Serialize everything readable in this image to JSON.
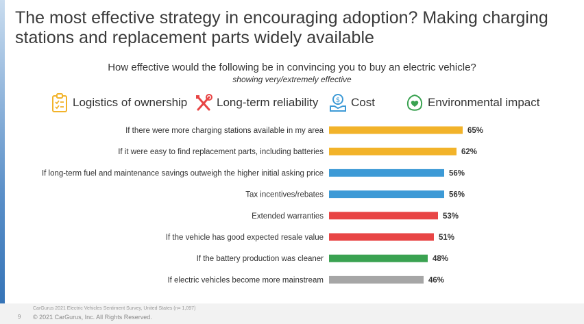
{
  "headline": "The most effective strategy in encouraging adoption? Making charging stations and replacement parts widely available",
  "question": "How effective would the following be in convincing you to buy an electric vehicle?",
  "subquestion": "showing very/extremely effective",
  "legend": [
    {
      "label": "Logistics of ownership",
      "color": "#f2b32a",
      "icon": "clipboard-icon"
    },
    {
      "label": "Long-term reliability",
      "color": "#e84545",
      "icon": "wrench-screwdriver-icon"
    },
    {
      "label": "Cost",
      "color": "#3d9ad6",
      "icon": "money-hand-icon"
    },
    {
      "label": "Environmental impact",
      "color": "#3aa251",
      "icon": "leaf-heart-icon"
    }
  ],
  "chart_data": {
    "type": "bar",
    "orientation": "horizontal",
    "categories": [
      "If there were more charging stations available in my area",
      "If it were easy to find replacement parts, including batteries",
      "If long-term fuel and maintenance savings outweigh the higher initial asking price",
      "Tax incentives/rebates",
      "Extended warranties",
      "If the vehicle has good expected resale value",
      "If the battery production was cleaner",
      "If electric vehicles become more mainstream"
    ],
    "values": [
      65,
      62,
      56,
      56,
      53,
      51,
      48,
      46
    ],
    "value_labels": [
      "65%",
      "62%",
      "56%",
      "56%",
      "53%",
      "51%",
      "48%",
      "46%"
    ],
    "colors": [
      "#f2b32a",
      "#f2b32a",
      "#3d9ad6",
      "#3d9ad6",
      "#e84545",
      "#e84545",
      "#3aa251",
      "#a6a6a6"
    ],
    "xlim": [
      0,
      100
    ],
    "grid": false
  },
  "footer": {
    "source": "CarGurus 2021 Electric Vehicles Sentiment Survey, United States (n= 1,097)",
    "page": "9",
    "copyright": "© 2021 CarGurus, Inc. All Rights Reserved."
  }
}
